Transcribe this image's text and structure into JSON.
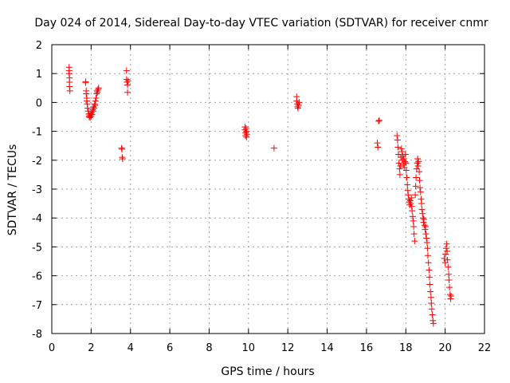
{
  "chart_data": {
    "type": "scatter",
    "title": "Day 024 of 2014, Sidereal Day-to-day VTEC variation (SDTVAR) for receiver cnmr",
    "xlabel": "GPS time / hours",
    "ylabel": "SDTVAR / TECUs",
    "xlim": [
      0,
      22
    ],
    "ylim": [
      -8,
      2
    ],
    "x_ticks": [
      0,
      2,
      4,
      6,
      8,
      10,
      12,
      14,
      16,
      18,
      20,
      22
    ],
    "y_ticks": [
      -8,
      -7,
      -6,
      -5,
      -4,
      -3,
      -2,
      -1,
      0,
      1,
      2
    ],
    "grid": true,
    "marker": "+",
    "color": "#ff0000",
    "series": [
      {
        "name": "SDTVAR",
        "points": [
          [
            0.88,
            1.22
          ],
          [
            0.88,
            1.1
          ],
          [
            0.88,
            1.0
          ],
          [
            0.9,
            0.85
          ],
          [
            0.9,
            0.7
          ],
          [
            0.9,
            0.55
          ],
          [
            0.92,
            0.4
          ],
          [
            1.72,
            0.72
          ],
          [
            1.72,
            0.68
          ],
          [
            1.75,
            0.4
          ],
          [
            1.75,
            0.3
          ],
          [
            1.78,
            0.15
          ],
          [
            1.78,
            0.05
          ],
          [
            1.8,
            -0.05
          ],
          [
            1.82,
            -0.2
          ],
          [
            1.85,
            -0.3
          ],
          [
            1.88,
            -0.4
          ],
          [
            1.9,
            -0.5
          ],
          [
            1.92,
            -0.45
          ],
          [
            1.95,
            -0.52
          ],
          [
            1.98,
            -0.4
          ],
          [
            2.0,
            -0.48
          ],
          [
            2.02,
            -0.35
          ],
          [
            2.05,
            -0.42
          ],
          [
            2.08,
            -0.25
          ],
          [
            2.1,
            -0.3
          ],
          [
            2.12,
            -0.15
          ],
          [
            2.15,
            -0.2
          ],
          [
            2.18,
            -0.05
          ],
          [
            2.2,
            -0.1
          ],
          [
            2.22,
            0.05
          ],
          [
            2.25,
            0.15
          ],
          [
            2.28,
            0.3
          ],
          [
            2.3,
            0.4
          ],
          [
            2.32,
            0.35
          ],
          [
            2.35,
            0.45
          ],
          [
            2.38,
            0.5
          ],
          [
            3.55,
            -1.58
          ],
          [
            3.57,
            -1.62
          ],
          [
            3.58,
            -1.9
          ],
          [
            3.6,
            -1.95
          ],
          [
            3.8,
            1.1
          ],
          [
            3.8,
            0.8
          ],
          [
            3.82,
            0.7
          ],
          [
            3.85,
            0.6
          ],
          [
            3.85,
            0.35
          ],
          [
            3.88,
            0.75
          ],
          [
            9.82,
            -0.85
          ],
          [
            9.82,
            -0.95
          ],
          [
            9.85,
            -1.05
          ],
          [
            9.85,
            -1.15
          ],
          [
            9.88,
            -0.9
          ],
          [
            9.9,
            -1.0
          ],
          [
            9.9,
            -1.2
          ],
          [
            9.92,
            -1.1
          ],
          [
            11.3,
            -1.58
          ],
          [
            12.45,
            0.2
          ],
          [
            12.45,
            0.05
          ],
          [
            12.48,
            -0.05
          ],
          [
            12.5,
            -0.15
          ],
          [
            12.52,
            -0.2
          ],
          [
            12.55,
            -0.1
          ],
          [
            12.58,
            0.0
          ],
          [
            16.55,
            -1.4
          ],
          [
            16.58,
            -1.55
          ],
          [
            16.62,
            -0.65
          ],
          [
            16.65,
            -0.62
          ],
          [
            17.55,
            -1.15
          ],
          [
            17.58,
            -1.3
          ],
          [
            17.6,
            -1.55
          ],
          [
            17.62,
            -1.8
          ],
          [
            17.65,
            -2.1
          ],
          [
            17.68,
            -2.3
          ],
          [
            17.7,
            -2.5
          ],
          [
            17.72,
            -2.2
          ],
          [
            17.75,
            -1.9
          ],
          [
            17.78,
            -1.6
          ],
          [
            17.8,
            -1.7
          ],
          [
            17.82,
            -2.0
          ],
          [
            17.85,
            -1.85
          ],
          [
            17.88,
            -2.15
          ],
          [
            17.9,
            -1.95
          ],
          [
            17.92,
            -2.25
          ],
          [
            17.95,
            -2.05
          ],
          [
            17.98,
            -1.8
          ],
          [
            18.0,
            -2.1
          ],
          [
            18.02,
            -2.35
          ],
          [
            18.05,
            -2.6
          ],
          [
            18.08,
            -2.85
          ],
          [
            18.1,
            -3.05
          ],
          [
            18.12,
            -3.2
          ],
          [
            18.15,
            -3.35
          ],
          [
            18.18,
            -3.45
          ],
          [
            18.2,
            -3.55
          ],
          [
            18.22,
            -3.4
          ],
          [
            18.25,
            -3.5
          ],
          [
            18.28,
            -3.3
          ],
          [
            18.3,
            -3.6
          ],
          [
            18.32,
            -3.75
          ],
          [
            18.35,
            -3.95
          ],
          [
            18.38,
            -4.1
          ],
          [
            18.4,
            -4.3
          ],
          [
            18.42,
            -4.55
          ],
          [
            18.45,
            -4.8
          ],
          [
            18.48,
            -3.2
          ],
          [
            18.5,
            -2.9
          ],
          [
            18.52,
            -2.6
          ],
          [
            18.55,
            -2.3
          ],
          [
            18.58,
            -2.1
          ],
          [
            18.6,
            -1.95
          ],
          [
            18.62,
            -2.2
          ],
          [
            18.65,
            -2.05
          ],
          [
            18.68,
            -2.4
          ],
          [
            18.7,
            -2.7
          ],
          [
            18.72,
            -2.95
          ],
          [
            18.75,
            -3.1
          ],
          [
            18.78,
            -3.35
          ],
          [
            18.8,
            -3.5
          ],
          [
            18.82,
            -3.7
          ],
          [
            18.85,
            -3.85
          ],
          [
            18.88,
            -4.0
          ],
          [
            18.9,
            -4.15
          ],
          [
            18.92,
            -4.05
          ],
          [
            18.95,
            -4.25
          ],
          [
            18.98,
            -4.4
          ],
          [
            19.0,
            -4.3
          ],
          [
            19.02,
            -4.55
          ],
          [
            19.05,
            -4.7
          ],
          [
            19.08,
            -4.85
          ],
          [
            19.1,
            -5.05
          ],
          [
            19.12,
            -5.3
          ],
          [
            19.15,
            -5.55
          ],
          [
            19.18,
            -5.8
          ],
          [
            19.2,
            -6.05
          ],
          [
            19.22,
            -6.3
          ],
          [
            19.25,
            -6.55
          ],
          [
            19.28,
            -6.75
          ],
          [
            19.3,
            -6.95
          ],
          [
            19.32,
            -7.15
          ],
          [
            19.35,
            -7.35
          ],
          [
            19.38,
            -7.55
          ],
          [
            19.4,
            -7.65
          ],
          [
            19.95,
            -5.4
          ],
          [
            20.0,
            -5.55
          ],
          [
            20.02,
            -5.25
          ],
          [
            20.05,
            -5.05
          ],
          [
            20.08,
            -4.9
          ],
          [
            20.1,
            -5.15
          ],
          [
            20.12,
            -5.45
          ],
          [
            20.15,
            -5.7
          ],
          [
            20.18,
            -5.95
          ],
          [
            20.2,
            -6.15
          ],
          [
            20.22,
            -6.4
          ],
          [
            20.25,
            -6.65
          ],
          [
            20.28,
            -6.8
          ],
          [
            20.3,
            -6.7
          ]
        ]
      }
    ]
  }
}
